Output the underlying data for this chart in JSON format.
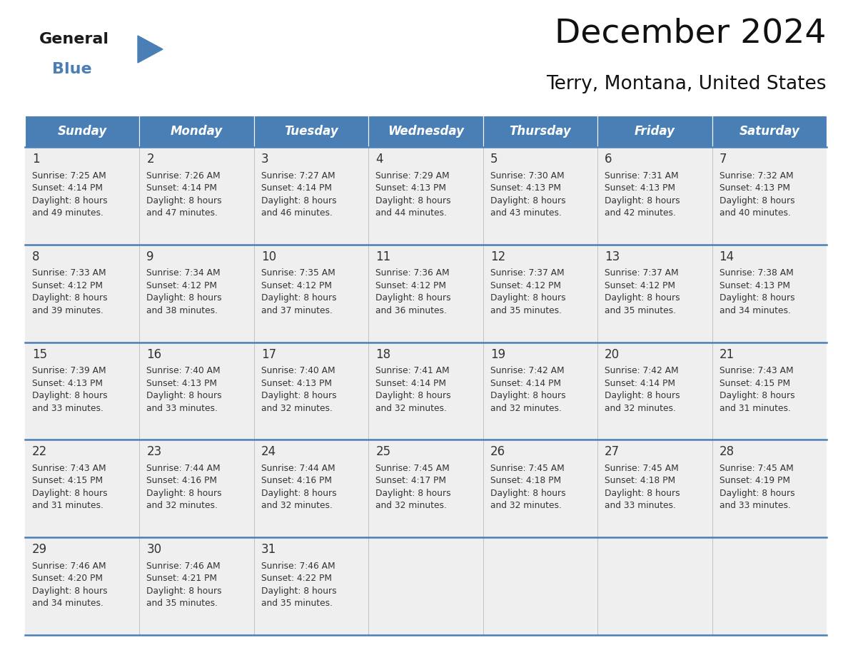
{
  "title": "December 2024",
  "subtitle": "Terry, Montana, United States",
  "header_color": "#4a7fb5",
  "header_text_color": "#ffffff",
  "day_names": [
    "Sunday",
    "Monday",
    "Tuesday",
    "Wednesday",
    "Thursday",
    "Friday",
    "Saturday"
  ],
  "background_color": "#ffffff",
  "cell_bg_color": "#efefef",
  "border_color": "#4a7fb5",
  "text_color": "#333333",
  "days": [
    {
      "day": 1,
      "col": 0,
      "row": 0,
      "sunrise": "7:25 AM",
      "sunset": "4:14 PM",
      "dl_hrs": "8 hours",
      "dl_min": "49 minutes."
    },
    {
      "day": 2,
      "col": 1,
      "row": 0,
      "sunrise": "7:26 AM",
      "sunset": "4:14 PM",
      "dl_hrs": "8 hours",
      "dl_min": "47 minutes."
    },
    {
      "day": 3,
      "col": 2,
      "row": 0,
      "sunrise": "7:27 AM",
      "sunset": "4:14 PM",
      "dl_hrs": "8 hours",
      "dl_min": "46 minutes."
    },
    {
      "day": 4,
      "col": 3,
      "row": 0,
      "sunrise": "7:29 AM",
      "sunset": "4:13 PM",
      "dl_hrs": "8 hours",
      "dl_min": "44 minutes."
    },
    {
      "day": 5,
      "col": 4,
      "row": 0,
      "sunrise": "7:30 AM",
      "sunset": "4:13 PM",
      "dl_hrs": "8 hours",
      "dl_min": "43 minutes."
    },
    {
      "day": 6,
      "col": 5,
      "row": 0,
      "sunrise": "7:31 AM",
      "sunset": "4:13 PM",
      "dl_hrs": "8 hours",
      "dl_min": "42 minutes."
    },
    {
      "day": 7,
      "col": 6,
      "row": 0,
      "sunrise": "7:32 AM",
      "sunset": "4:13 PM",
      "dl_hrs": "8 hours",
      "dl_min": "40 minutes."
    },
    {
      "day": 8,
      "col": 0,
      "row": 1,
      "sunrise": "7:33 AM",
      "sunset": "4:12 PM",
      "dl_hrs": "8 hours",
      "dl_min": "39 minutes."
    },
    {
      "day": 9,
      "col": 1,
      "row": 1,
      "sunrise": "7:34 AM",
      "sunset": "4:12 PM",
      "dl_hrs": "8 hours",
      "dl_min": "38 minutes."
    },
    {
      "day": 10,
      "col": 2,
      "row": 1,
      "sunrise": "7:35 AM",
      "sunset": "4:12 PM",
      "dl_hrs": "8 hours",
      "dl_min": "37 minutes."
    },
    {
      "day": 11,
      "col": 3,
      "row": 1,
      "sunrise": "7:36 AM",
      "sunset": "4:12 PM",
      "dl_hrs": "8 hours",
      "dl_min": "36 minutes."
    },
    {
      "day": 12,
      "col": 4,
      "row": 1,
      "sunrise": "7:37 AM",
      "sunset": "4:12 PM",
      "dl_hrs": "8 hours",
      "dl_min": "35 minutes."
    },
    {
      "day": 13,
      "col": 5,
      "row": 1,
      "sunrise": "7:37 AM",
      "sunset": "4:12 PM",
      "dl_hrs": "8 hours",
      "dl_min": "35 minutes."
    },
    {
      "day": 14,
      "col": 6,
      "row": 1,
      "sunrise": "7:38 AM",
      "sunset": "4:13 PM",
      "dl_hrs": "8 hours",
      "dl_min": "34 minutes."
    },
    {
      "day": 15,
      "col": 0,
      "row": 2,
      "sunrise": "7:39 AM",
      "sunset": "4:13 PM",
      "dl_hrs": "8 hours",
      "dl_min": "33 minutes."
    },
    {
      "day": 16,
      "col": 1,
      "row": 2,
      "sunrise": "7:40 AM",
      "sunset": "4:13 PM",
      "dl_hrs": "8 hours",
      "dl_min": "33 minutes."
    },
    {
      "day": 17,
      "col": 2,
      "row": 2,
      "sunrise": "7:40 AM",
      "sunset": "4:13 PM",
      "dl_hrs": "8 hours",
      "dl_min": "32 minutes."
    },
    {
      "day": 18,
      "col": 3,
      "row": 2,
      "sunrise": "7:41 AM",
      "sunset": "4:14 PM",
      "dl_hrs": "8 hours",
      "dl_min": "32 minutes."
    },
    {
      "day": 19,
      "col": 4,
      "row": 2,
      "sunrise": "7:42 AM",
      "sunset": "4:14 PM",
      "dl_hrs": "8 hours",
      "dl_min": "32 minutes."
    },
    {
      "day": 20,
      "col": 5,
      "row": 2,
      "sunrise": "7:42 AM",
      "sunset": "4:14 PM",
      "dl_hrs": "8 hours",
      "dl_min": "32 minutes."
    },
    {
      "day": 21,
      "col": 6,
      "row": 2,
      "sunrise": "7:43 AM",
      "sunset": "4:15 PM",
      "dl_hrs": "8 hours",
      "dl_min": "31 minutes."
    },
    {
      "day": 22,
      "col": 0,
      "row": 3,
      "sunrise": "7:43 AM",
      "sunset": "4:15 PM",
      "dl_hrs": "8 hours",
      "dl_min": "31 minutes."
    },
    {
      "day": 23,
      "col": 1,
      "row": 3,
      "sunrise": "7:44 AM",
      "sunset": "4:16 PM",
      "dl_hrs": "8 hours",
      "dl_min": "32 minutes."
    },
    {
      "day": 24,
      "col": 2,
      "row": 3,
      "sunrise": "7:44 AM",
      "sunset": "4:16 PM",
      "dl_hrs": "8 hours",
      "dl_min": "32 minutes."
    },
    {
      "day": 25,
      "col": 3,
      "row": 3,
      "sunrise": "7:45 AM",
      "sunset": "4:17 PM",
      "dl_hrs": "8 hours",
      "dl_min": "32 minutes."
    },
    {
      "day": 26,
      "col": 4,
      "row": 3,
      "sunrise": "7:45 AM",
      "sunset": "4:18 PM",
      "dl_hrs": "8 hours",
      "dl_min": "32 minutes."
    },
    {
      "day": 27,
      "col": 5,
      "row": 3,
      "sunrise": "7:45 AM",
      "sunset": "4:18 PM",
      "dl_hrs": "8 hours",
      "dl_min": "33 minutes."
    },
    {
      "day": 28,
      "col": 6,
      "row": 3,
      "sunrise": "7:45 AM",
      "sunset": "4:19 PM",
      "dl_hrs": "8 hours",
      "dl_min": "33 minutes."
    },
    {
      "day": 29,
      "col": 0,
      "row": 4,
      "sunrise": "7:46 AM",
      "sunset": "4:20 PM",
      "dl_hrs": "8 hours",
      "dl_min": "34 minutes."
    },
    {
      "day": 30,
      "col": 1,
      "row": 4,
      "sunrise": "7:46 AM",
      "sunset": "4:21 PM",
      "dl_hrs": "8 hours",
      "dl_min": "35 minutes."
    },
    {
      "day": 31,
      "col": 2,
      "row": 4,
      "sunrise": "7:46 AM",
      "sunset": "4:22 PM",
      "dl_hrs": "8 hours",
      "dl_min": "35 minutes."
    }
  ],
  "num_rows": 5,
  "num_cols": 7,
  "fig_width": 11.88,
  "fig_height": 9.18,
  "dpi": 100
}
